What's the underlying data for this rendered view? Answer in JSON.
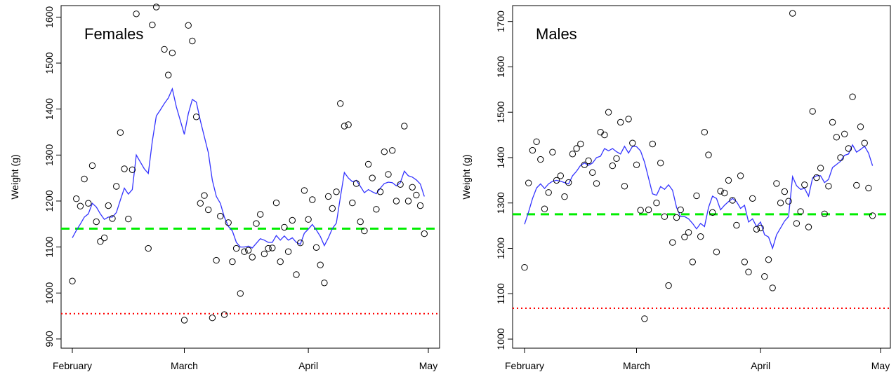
{
  "colors": {
    "fit_line": "#3333ff",
    "mean_line": "#00ee00",
    "threshold_line": "#ff0000",
    "points": "#000000"
  },
  "chart_data": [
    {
      "type": "scatter",
      "title": "Females",
      "ylabel": "Weight (g)",
      "xlim": [
        0,
        89
      ],
      "ylim": [
        880,
        1625
      ],
      "xticks": [
        {
          "label": "February",
          "value": 0
        },
        {
          "label": "March",
          "value": 28
        },
        {
          "label": "April",
          "value": 59
        },
        {
          "label": "May",
          "value": 89
        }
      ],
      "yticks": [
        900,
        1000,
        1100,
        1200,
        1300,
        1400,
        1500,
        1600
      ],
      "grid": false,
      "hlines": {
        "mean": 1140,
        "threshold": 955
      },
      "points": [
        [
          0,
          1026
        ],
        [
          1,
          1205
        ],
        [
          2,
          1189
        ],
        [
          3,
          1248
        ],
        [
          4,
          1195
        ],
        [
          5,
          1277
        ],
        [
          6,
          1155
        ],
        [
          7,
          1112
        ],
        [
          8,
          1120
        ],
        [
          9,
          1190
        ],
        [
          10,
          1162
        ],
        [
          11,
          1232
        ],
        [
          12,
          1349
        ],
        [
          13,
          1270
        ],
        [
          14,
          1161
        ],
        [
          15,
          1268
        ],
        [
          16,
          1607
        ],
        [
          19,
          1097
        ],
        [
          20,
          1583
        ],
        [
          21,
          1622
        ],
        [
          23,
          1530
        ],
        [
          24,
          1474
        ],
        [
          25,
          1522
        ],
        [
          28,
          941
        ],
        [
          29,
          1582
        ],
        [
          30,
          1548
        ],
        [
          31,
          1383
        ],
        [
          32,
          1195
        ],
        [
          33,
          1212
        ],
        [
          34,
          1181
        ],
        [
          35,
          946
        ],
        [
          36,
          1071
        ],
        [
          37,
          1167
        ],
        [
          38,
          953
        ],
        [
          39,
          1153
        ],
        [
          40,
          1068
        ],
        [
          41,
          1097
        ],
        [
          42,
          999
        ],
        [
          43,
          1090
        ],
        [
          44,
          1093
        ],
        [
          45,
          1078
        ],
        [
          46,
          1151
        ],
        [
          47,
          1171
        ],
        [
          48,
          1085
        ],
        [
          49,
          1097
        ],
        [
          50,
          1098
        ],
        [
          51,
          1196
        ],
        [
          52,
          1068
        ],
        [
          53,
          1143
        ],
        [
          54,
          1090
        ],
        [
          55,
          1158
        ],
        [
          56,
          1040
        ],
        [
          57,
          1109
        ],
        [
          58,
          1223
        ],
        [
          59,
          1160
        ],
        [
          60,
          1203
        ],
        [
          61,
          1099
        ],
        [
          62,
          1061
        ],
        [
          63,
          1022
        ],
        [
          64,
          1210
        ],
        [
          65,
          1184
        ],
        [
          66,
          1220
        ],
        [
          67,
          1412
        ],
        [
          68,
          1363
        ],
        [
          69,
          1366
        ],
        [
          70,
          1196
        ],
        [
          71,
          1238
        ],
        [
          72,
          1155
        ],
        [
          73,
          1135
        ],
        [
          74,
          1280
        ],
        [
          75,
          1250
        ],
        [
          76,
          1182
        ],
        [
          77,
          1220
        ],
        [
          78,
          1307
        ],
        [
          79,
          1258
        ],
        [
          80,
          1310
        ],
        [
          81,
          1200
        ],
        [
          82,
          1236
        ],
        [
          83,
          1363
        ],
        [
          84,
          1200
        ],
        [
          85,
          1230
        ],
        [
          86,
          1213
        ],
        [
          87,
          1190
        ],
        [
          88,
          1129
        ]
      ],
      "fit_line": [
        [
          0,
          1120
        ],
        [
          1,
          1136
        ],
        [
          2,
          1150
        ],
        [
          3,
          1165
        ],
        [
          4,
          1172
        ],
        [
          5,
          1195
        ],
        [
          6,
          1187
        ],
        [
          7,
          1172
        ],
        [
          8,
          1160
        ],
        [
          9,
          1165
        ],
        [
          10,
          1165
        ],
        [
          11,
          1175
        ],
        [
          12,
          1202
        ],
        [
          13,
          1228
        ],
        [
          14,
          1215
        ],
        [
          15,
          1225
        ],
        [
          16,
          1300
        ],
        [
          17,
          1285
        ],
        [
          18,
          1270
        ],
        [
          19,
          1260
        ],
        [
          20,
          1330
        ],
        [
          21,
          1385
        ],
        [
          22,
          1398
        ],
        [
          23,
          1412
        ],
        [
          24,
          1424
        ],
        [
          25,
          1444
        ],
        [
          26,
          1405
        ],
        [
          27,
          1375
        ],
        [
          28,
          1345
        ],
        [
          29,
          1390
        ],
        [
          30,
          1421
        ],
        [
          31,
          1415
        ],
        [
          32,
          1375
        ],
        [
          33,
          1340
        ],
        [
          34,
          1305
        ],
        [
          35,
          1245
        ],
        [
          36,
          1210
        ],
        [
          37,
          1195
        ],
        [
          38,
          1165
        ],
        [
          39,
          1145
        ],
        [
          40,
          1135
        ],
        [
          41,
          1110
        ],
        [
          42,
          1100
        ],
        [
          43,
          1100
        ],
        [
          44,
          1102
        ],
        [
          45,
          1098
        ],
        [
          46,
          1108
        ],
        [
          47,
          1118
        ],
        [
          48,
          1115
        ],
        [
          49,
          1110
        ],
        [
          50,
          1110
        ],
        [
          51,
          1125
        ],
        [
          52,
          1115
        ],
        [
          53,
          1124
        ],
        [
          54,
          1115
        ],
        [
          55,
          1120
        ],
        [
          56,
          1110
        ],
        [
          57,
          1106
        ],
        [
          58,
          1130
        ],
        [
          59,
          1139
        ],
        [
          60,
          1149
        ],
        [
          61,
          1137
        ],
        [
          62,
          1123
        ],
        [
          63,
          1103
        ],
        [
          64,
          1120
        ],
        [
          65,
          1140
        ],
        [
          66,
          1152
        ],
        [
          67,
          1208
        ],
        [
          68,
          1262
        ],
        [
          69,
          1250
        ],
        [
          70,
          1242
        ],
        [
          71,
          1245
        ],
        [
          72,
          1232
        ],
        [
          73,
          1218
        ],
        [
          74,
          1225
        ],
        [
          75,
          1220
        ],
        [
          76,
          1216
        ],
        [
          77,
          1228
        ],
        [
          78,
          1238
        ],
        [
          79,
          1241
        ],
        [
          80,
          1240
        ],
        [
          81,
          1233
        ],
        [
          82,
          1240
        ],
        [
          83,
          1265
        ],
        [
          84,
          1255
        ],
        [
          85,
          1252
        ],
        [
          86,
          1246
        ],
        [
          87,
          1237
        ],
        [
          88,
          1210
        ]
      ]
    },
    {
      "type": "scatter",
      "title": "Males",
      "ylabel": "Weight (g)",
      "xlim": [
        0,
        89
      ],
      "ylim": [
        980,
        1735
      ],
      "xticks": [
        {
          "label": "February",
          "value": 0
        },
        {
          "label": "March",
          "value": 28
        },
        {
          "label": "April",
          "value": 59
        },
        {
          "label": "May",
          "value": 89
        }
      ],
      "yticks": [
        1000,
        1100,
        1200,
        1300,
        1400,
        1500,
        1600,
        1700
      ],
      "grid": false,
      "hlines": {
        "mean": 1275,
        "threshold": 1068
      },
      "points": [
        [
          0,
          1158
        ],
        [
          1,
          1344
        ],
        [
          2,
          1416
        ],
        [
          3,
          1435
        ],
        [
          4,
          1396
        ],
        [
          5,
          1287
        ],
        [
          6,
          1323
        ],
        [
          7,
          1412
        ],
        [
          8,
          1350
        ],
        [
          9,
          1360
        ],
        [
          10,
          1314
        ],
        [
          11,
          1345
        ],
        [
          12,
          1408
        ],
        [
          13,
          1420
        ],
        [
          14,
          1430
        ],
        [
          15,
          1384
        ],
        [
          16,
          1393
        ],
        [
          17,
          1367
        ],
        [
          18,
          1343
        ],
        [
          19,
          1456
        ],
        [
          20,
          1450
        ],
        [
          21,
          1500
        ],
        [
          22,
          1382
        ],
        [
          23,
          1398
        ],
        [
          24,
          1478
        ],
        [
          25,
          1337
        ],
        [
          26,
          1485
        ],
        [
          27,
          1432
        ],
        [
          28,
          1384
        ],
        [
          29,
          1284
        ],
        [
          30,
          1045
        ],
        [
          31,
          1285
        ],
        [
          32,
          1430
        ],
        [
          33,
          1300
        ],
        [
          34,
          1388
        ],
        [
          35,
          1270
        ],
        [
          36,
          1118
        ],
        [
          37,
          1213
        ],
        [
          38,
          1268
        ],
        [
          39,
          1285
        ],
        [
          40,
          1225
        ],
        [
          41,
          1235
        ],
        [
          42,
          1170
        ],
        [
          43,
          1316
        ],
        [
          44,
          1226
        ],
        [
          45,
          1456
        ],
        [
          46,
          1406
        ],
        [
          47,
          1279
        ],
        [
          48,
          1192
        ],
        [
          49,
          1326
        ],
        [
          50,
          1322
        ],
        [
          51,
          1350
        ],
        [
          52,
          1306
        ],
        [
          53,
          1251
        ],
        [
          54,
          1360
        ],
        [
          55,
          1170
        ],
        [
          56,
          1148
        ],
        [
          57,
          1310
        ],
        [
          58,
          1242
        ],
        [
          59,
          1245
        ],
        [
          60,
          1138
        ],
        [
          61,
          1175
        ],
        [
          62,
          1113
        ],
        [
          63,
          1343
        ],
        [
          64,
          1300
        ],
        [
          65,
          1325
        ],
        [
          66,
          1304
        ],
        [
          67,
          1718
        ],
        [
          68,
          1255
        ],
        [
          69,
          1281
        ],
        [
          70,
          1340
        ],
        [
          71,
          1247
        ],
        [
          72,
          1502
        ],
        [
          73,
          1356
        ],
        [
          74,
          1377
        ],
        [
          75,
          1276
        ],
        [
          76,
          1337
        ],
        [
          77,
          1478
        ],
        [
          78,
          1445
        ],
        [
          79,
          1400
        ],
        [
          80,
          1452
        ],
        [
          81,
          1420
        ],
        [
          82,
          1534
        ],
        [
          83,
          1339
        ],
        [
          84,
          1468
        ],
        [
          85,
          1432
        ],
        [
          86,
          1333
        ],
        [
          87,
          1272
        ]
      ],
      "fit_line": [
        [
          0,
          1253
        ],
        [
          1,
          1280
        ],
        [
          2,
          1310
        ],
        [
          3,
          1333
        ],
        [
          4,
          1342
        ],
        [
          5,
          1332
        ],
        [
          6,
          1342
        ],
        [
          7,
          1348
        ],
        [
          8,
          1350
        ],
        [
          9,
          1348
        ],
        [
          10,
          1345
        ],
        [
          11,
          1342
        ],
        [
          12,
          1360
        ],
        [
          13,
          1370
        ],
        [
          14,
          1383
        ],
        [
          15,
          1388
        ],
        [
          16,
          1383
        ],
        [
          17,
          1388
        ],
        [
          18,
          1400
        ],
        [
          19,
          1403
        ],
        [
          20,
          1420
        ],
        [
          21,
          1415
        ],
        [
          22,
          1420
        ],
        [
          23,
          1413
        ],
        [
          24,
          1408
        ],
        [
          25,
          1425
        ],
        [
          26,
          1410
        ],
        [
          27,
          1425
        ],
        [
          28,
          1424
        ],
        [
          29,
          1415
        ],
        [
          30,
          1390
        ],
        [
          31,
          1355
        ],
        [
          32,
          1320
        ],
        [
          33,
          1317
        ],
        [
          34,
          1336
        ],
        [
          35,
          1330
        ],
        [
          36,
          1340
        ],
        [
          37,
          1328
        ],
        [
          38,
          1290
        ],
        [
          39,
          1270
        ],
        [
          40,
          1270
        ],
        [
          41,
          1265
        ],
        [
          42,
          1255
        ],
        [
          43,
          1243
        ],
        [
          44,
          1255
        ],
        [
          45,
          1248
        ],
        [
          46,
          1290
        ],
        [
          47,
          1315
        ],
        [
          48,
          1310
        ],
        [
          49,
          1285
        ],
        [
          50,
          1295
        ],
        [
          51,
          1303
        ],
        [
          52,
          1310
        ],
        [
          53,
          1303
        ],
        [
          54,
          1288
        ],
        [
          55,
          1295
        ],
        [
          56,
          1258
        ],
        [
          57,
          1265
        ],
        [
          58,
          1248
        ],
        [
          59,
          1258
        ],
        [
          60,
          1230
        ],
        [
          61,
          1225
        ],
        [
          62,
          1200
        ],
        [
          63,
          1230
        ],
        [
          64,
          1245
        ],
        [
          65,
          1260
        ],
        [
          66,
          1270
        ],
        [
          67,
          1358
        ],
        [
          68,
          1338
        ],
        [
          69,
          1330
        ],
        [
          70,
          1332
        ],
        [
          71,
          1315
        ],
        [
          72,
          1355
        ],
        [
          73,
          1360
        ],
        [
          74,
          1360
        ],
        [
          75,
          1345
        ],
        [
          76,
          1352
        ],
        [
          77,
          1378
        ],
        [
          78,
          1385
        ],
        [
          79,
          1392
        ],
        [
          80,
          1405
        ],
        [
          81,
          1408
        ],
        [
          82,
          1428
        ],
        [
          83,
          1412
        ],
        [
          84,
          1418
        ],
        [
          85,
          1425
        ],
        [
          86,
          1410
        ],
        [
          87,
          1382
        ]
      ]
    }
  ]
}
